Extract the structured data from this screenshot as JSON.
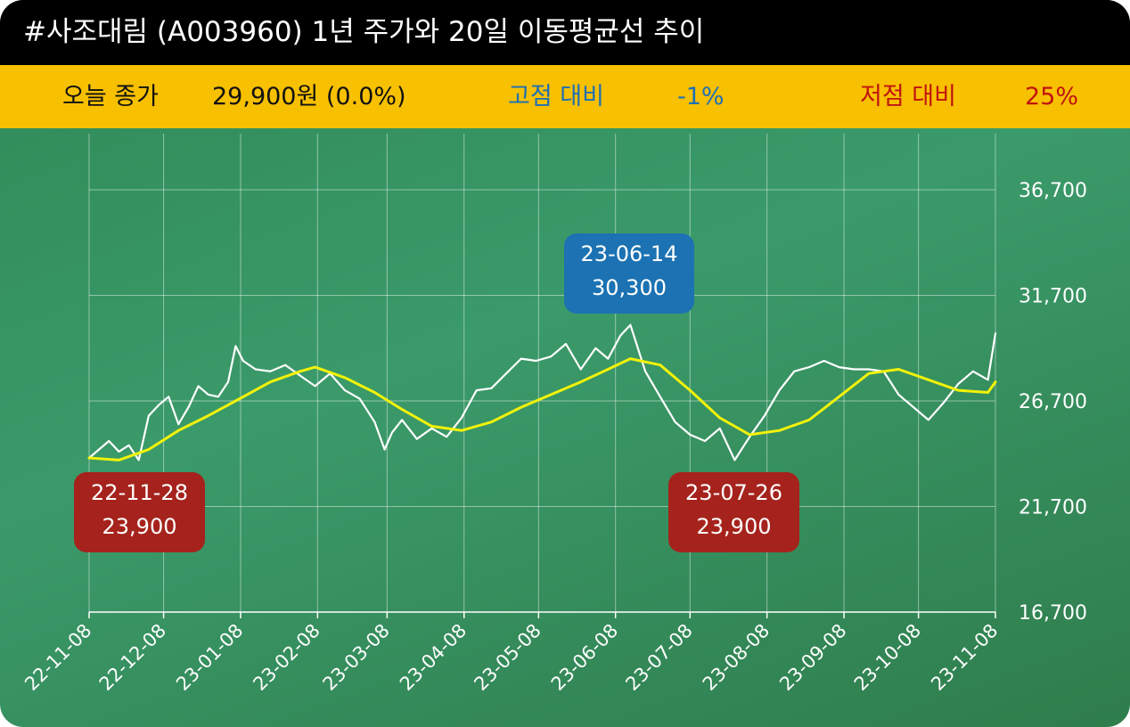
{
  "header": {
    "title": "#사조대림 (A003960) 1년 주가와 20일 이동평균선 추이"
  },
  "stats": {
    "today_label": "오늘 종가",
    "today_value": "29,900원 (0.0%)",
    "high_label": "고점 대비",
    "high_value": "-1%",
    "low_label": "저점 대비",
    "low_value": "25%"
  },
  "colors": {
    "price_line": "#ffffff",
    "ma_line": "#f2f20a",
    "high_badge": "#1c72b2",
    "low_badge": "#a5231c",
    "title_bg": "#000000",
    "stat_bg": "#f7c000"
  },
  "annotations": {
    "high": {
      "date": "23-06-14",
      "value": "30,300"
    },
    "low1": {
      "date": "22-11-28",
      "value": "23,900"
    },
    "low2": {
      "date": "23-07-26",
      "value": "23,900"
    }
  },
  "chart_data": {
    "type": "line",
    "ylim": [
      16700,
      36700
    ],
    "yticks": [
      "16,700",
      "21,700",
      "26,700",
      "31,700",
      "36,700"
    ],
    "xticks": [
      "22-11-08",
      "22-12-08",
      "23-01-08",
      "23-02-08",
      "23-03-08",
      "23-04-08",
      "23-05-08",
      "23-06-08",
      "23-07-08",
      "23-08-08",
      "23-09-08",
      "23-10-08",
      "23-11-08"
    ],
    "grid": true,
    "series": [
      {
        "type": "price",
        "x": [
          "22-11-08",
          "22-11-12",
          "22-11-16",
          "22-11-20",
          "22-11-24",
          "22-11-28",
          "22-12-02",
          "22-12-06",
          "22-12-10",
          "22-12-14",
          "22-12-18",
          "22-12-22",
          "22-12-26",
          "22-12-30",
          "23-01-03",
          "23-01-06",
          "23-01-09",
          "23-01-14",
          "23-01-20",
          "23-01-26",
          "23-02-01",
          "23-02-07",
          "23-02-13",
          "23-02-19",
          "23-02-25",
          "23-03-03",
          "23-03-07",
          "23-03-10",
          "23-03-14",
          "23-03-20",
          "23-03-26",
          "23-04-01",
          "23-04-07",
          "23-04-13",
          "23-04-19",
          "23-04-25",
          "23-05-01",
          "23-05-07",
          "23-05-13",
          "23-05-19",
          "23-05-25",
          "23-05-31",
          "23-06-05",
          "23-06-10",
          "23-06-14",
          "23-06-20",
          "23-06-26",
          "23-07-02",
          "23-07-08",
          "23-07-14",
          "23-07-20",
          "23-07-26",
          "23-08-01",
          "23-08-07",
          "23-08-13",
          "23-08-19",
          "23-08-25",
          "23-08-31",
          "23-09-06",
          "23-09-12",
          "23-09-18",
          "23-09-24",
          "23-09-30",
          "23-10-06",
          "23-10-12",
          "23-10-18",
          "23-10-24",
          "23-10-30",
          "23-11-05",
          "23-11-08"
        ],
        "values": [
          24000,
          24400,
          24800,
          24300,
          24600,
          23900,
          26000,
          26500,
          26900,
          25600,
          26400,
          27400,
          27000,
          26900,
          27600,
          29300,
          28600,
          28200,
          28100,
          28400,
          27900,
          27400,
          28000,
          27200,
          26800,
          25700,
          24400,
          25200,
          25800,
          24900,
          25400,
          25000,
          25900,
          27200,
          27300,
          28000,
          28700,
          28600,
          28800,
          29400,
          28200,
          29200,
          28700,
          29800,
          30300,
          28100,
          26900,
          25700,
          25100,
          24800,
          25400,
          23900,
          25000,
          26000,
          27200,
          28100,
          28300,
          28600,
          28300,
          28200,
          28200,
          28100,
          27000,
          26400,
          25800,
          26600,
          27500,
          28100,
          27700,
          29900
        ]
      },
      {
        "type": "ma20",
        "x": [
          "22-11-08",
          "22-11-20",
          "22-12-02",
          "22-12-14",
          "22-12-26",
          "23-01-06",
          "23-01-20",
          "23-02-01",
          "23-02-07",
          "23-02-19",
          "23-03-03",
          "23-03-14",
          "23-03-26",
          "23-04-07",
          "23-04-19",
          "23-05-01",
          "23-05-13",
          "23-05-25",
          "23-06-05",
          "23-06-14",
          "23-06-26",
          "23-07-08",
          "23-07-20",
          "23-08-01",
          "23-08-13",
          "23-08-25",
          "23-09-06",
          "23-09-18",
          "23-09-30",
          "23-10-12",
          "23-10-24",
          "23-11-05",
          "23-11-08"
        ],
        "values": [
          24000,
          23900,
          24400,
          25300,
          26000,
          26700,
          27600,
          28100,
          28300,
          27800,
          27100,
          26300,
          25500,
          25300,
          25700,
          26400,
          27000,
          27600,
          28200,
          28700,
          28400,
          27200,
          25900,
          25100,
          25300,
          25800,
          26900,
          28000,
          28200,
          27700,
          27200,
          27100,
          27600
        ]
      }
    ]
  }
}
